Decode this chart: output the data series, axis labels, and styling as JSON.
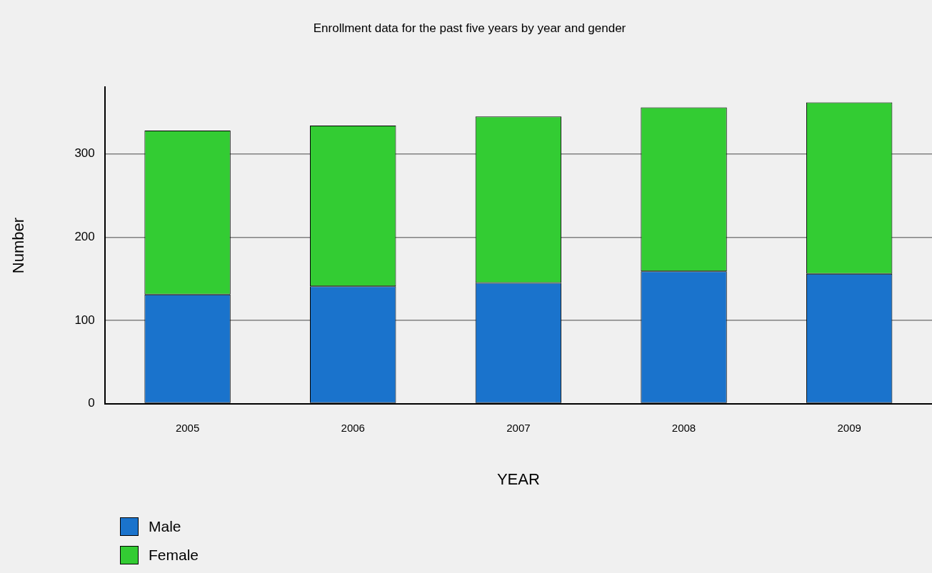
{
  "chart_data": {
    "type": "bar",
    "title": "Enrollment data for the past five years by year and gender",
    "xlabel": "YEAR",
    "ylabel": "Number",
    "categories": [
      "2005",
      "2006",
      "2007",
      "2008",
      "2009"
    ],
    "series": [
      {
        "name": "Male",
        "color": "#1a73cc",
        "values": [
          131,
          141,
          145,
          159,
          156
        ]
      },
      {
        "name": "Female",
        "color": "#33cc33",
        "values": [
          197,
          193,
          200,
          197,
          206
        ]
      }
    ],
    "stacked": true,
    "ylim": [
      0,
      380
    ],
    "yticks": [
      0,
      100,
      200,
      300
    ],
    "grid": "y",
    "legend": "bottom left"
  }
}
